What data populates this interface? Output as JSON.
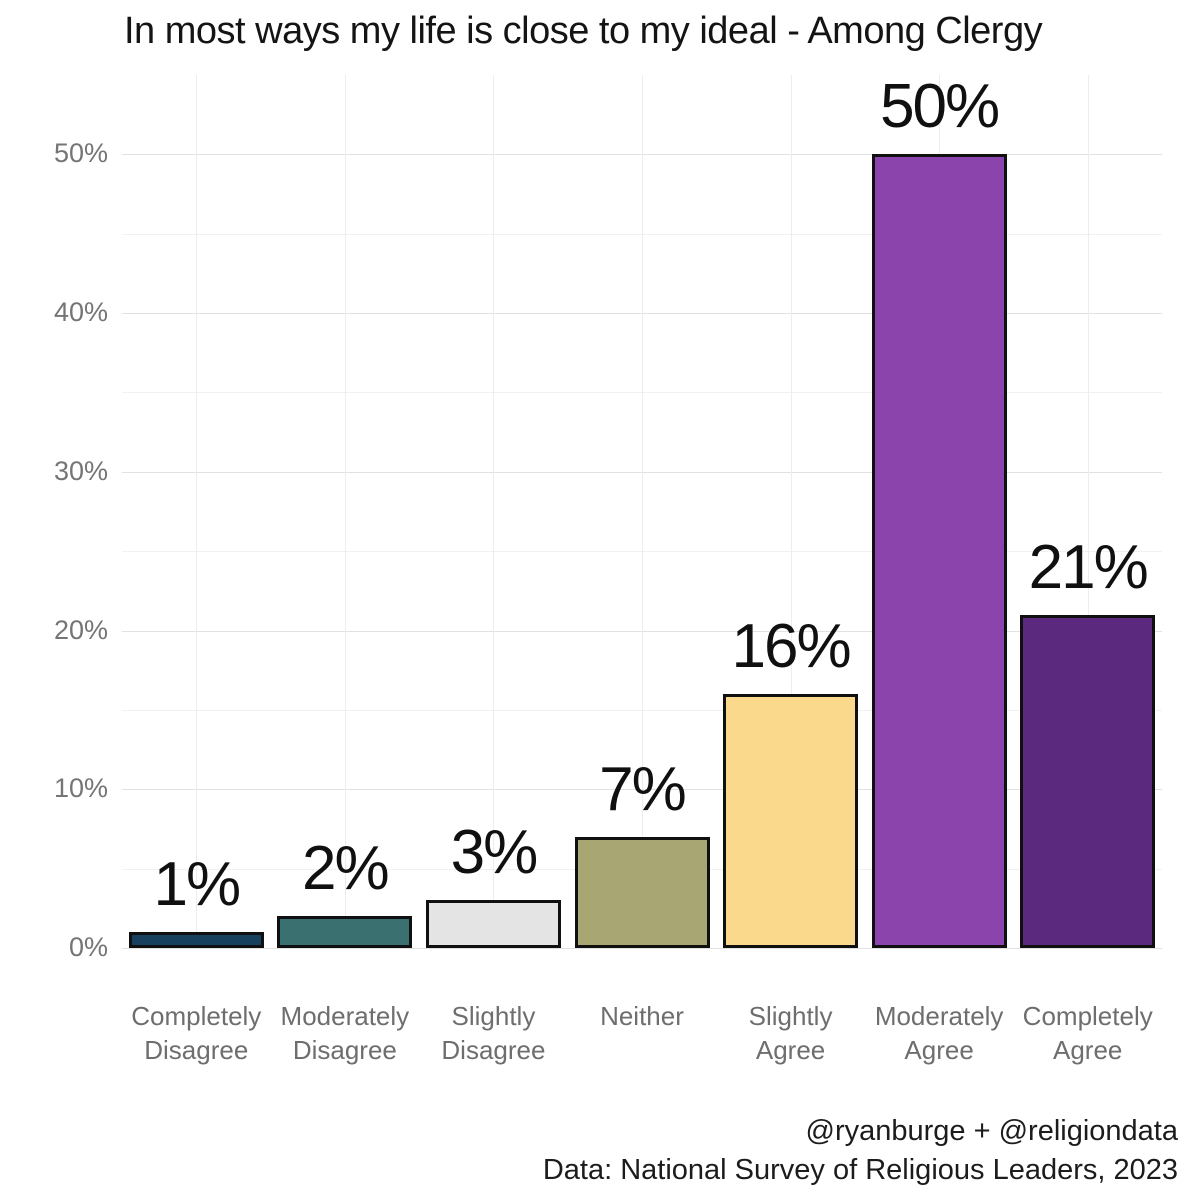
{
  "chart_data": {
    "type": "bar",
    "title": "In most ways my life is close to my ideal - Among Clergy",
    "categories": [
      "Completely\nDisagree",
      "Moderately\nDisagree",
      "Slightly\nDisagree",
      "Neither",
      "Slightly\nAgree",
      "Moderately\nAgree",
      "Completely\nAgree"
    ],
    "values": [
      1,
      2,
      3,
      7,
      16,
      50,
      21
    ],
    "value_labels": [
      "1%",
      "2%",
      "3%",
      "7%",
      "16%",
      "50%",
      "21%"
    ],
    "bar_colors": [
      "#16405d",
      "#3a7070",
      "#e4e4e4",
      "#a8a774",
      "#fbd98c",
      "#8c44ad",
      "#5b2a7f"
    ],
    "bar_border_color": "#101010",
    "xlabel": "",
    "ylabel": "",
    "ylim": [
      0,
      55
    ],
    "yticks": [
      {
        "value": 0,
        "label": "0%"
      },
      {
        "value": 10,
        "label": "10%"
      },
      {
        "value": 20,
        "label": "20%"
      },
      {
        "value": 30,
        "label": "30%"
      },
      {
        "value": 40,
        "label": "40%"
      },
      {
        "value": 50,
        "label": "50%"
      }
    ],
    "minor_ticks": [
      5,
      15,
      25,
      35,
      45
    ],
    "grid": true,
    "legend": false
  },
  "caption": {
    "line1": "@ryanburge + @religiondata",
    "line2": "Data: National Survey of Religious Leaders, 2023"
  }
}
